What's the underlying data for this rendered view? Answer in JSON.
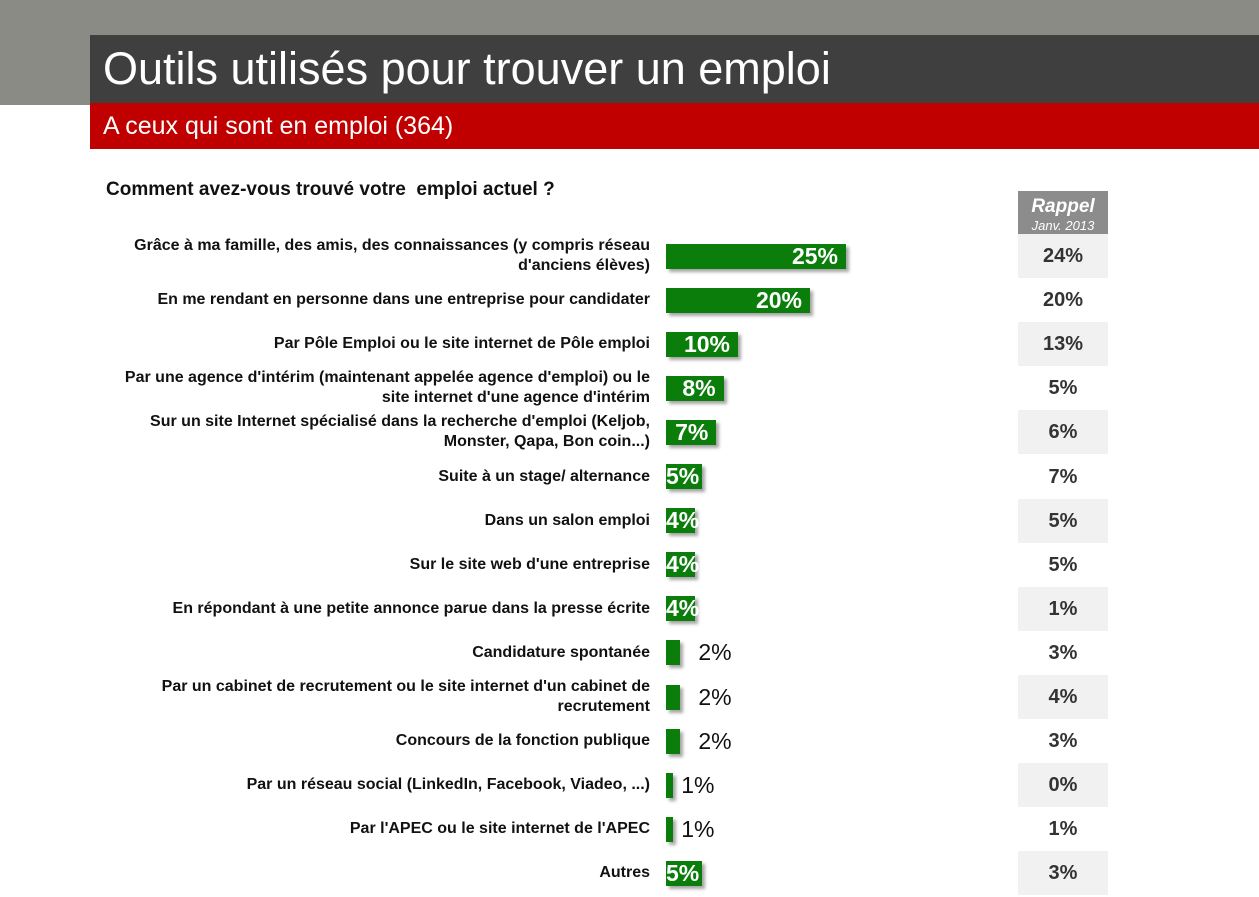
{
  "title": "Outils utilisés pour trouver un emploi",
  "subtitle": "A ceux qui sont en emploi (364)",
  "question": "Comment avez-vous trouvé votre  emploi actuel ?",
  "rappel": {
    "title": "Rappel",
    "subtitle": "Janv. 2013"
  },
  "colors": {
    "bar": "#0a7d0a",
    "title_bg": "#3f3f3f",
    "subtitle_bg": "#c00000",
    "rappel_header_bg": "#8c8c8c"
  },
  "chart_data": {
    "type": "bar",
    "orientation": "horizontal",
    "unit": "%",
    "categories": [
      "Grâce à ma famille, des amis, des connaissances (y compris réseau d'anciens élèves)",
      "En me rendant en personne dans une entreprise pour candidater",
      "Par Pôle Emploi ou le site internet de Pôle emploi",
      "Par une agence d'intérim (maintenant appelée agence d'emploi) ou le site internet d'une agence d'intérim",
      "Sur un site Internet spécialisé dans la recherche d'emploi (Keljob, Monster, Qapa, Bon coin...)",
      "Suite à un stage/ alternance",
      "Dans un salon emploi",
      "Sur le site web d'une entreprise",
      "En répondant à une petite annonce parue dans la presse écrite",
      "Candidature spontanée",
      "Par un cabinet de recrutement ou le site internet d'un cabinet de recrutement",
      "Concours de la fonction publique",
      "Par un réseau social (LinkedIn, Facebook, Viadeo, ...)",
      "Par l'APEC ou le site internet de l'APEC",
      "Autres"
    ],
    "labels": [
      "25%",
      "20%",
      "10%",
      "8%",
      "7%",
      "5%",
      "4%",
      "4%",
      "4%",
      "2%",
      "2%",
      "2%",
      "1%",
      "1%",
      "5%"
    ],
    "values": [
      25,
      20,
      10,
      8,
      7,
      5,
      4,
      4,
      4,
      2,
      2,
      2,
      1,
      1,
      5
    ],
    "rappel_labels": [
      "24%",
      "20%",
      "13%",
      "5%",
      "6%",
      "7%",
      "5%",
      "5%",
      "1%",
      "3%",
      "4%",
      "3%",
      "0%",
      "1%",
      "3%"
    ],
    "rappel_values": [
      24,
      20,
      13,
      5,
      6,
      7,
      5,
      5,
      1,
      3,
      4,
      3,
      0,
      1,
      3
    ]
  }
}
